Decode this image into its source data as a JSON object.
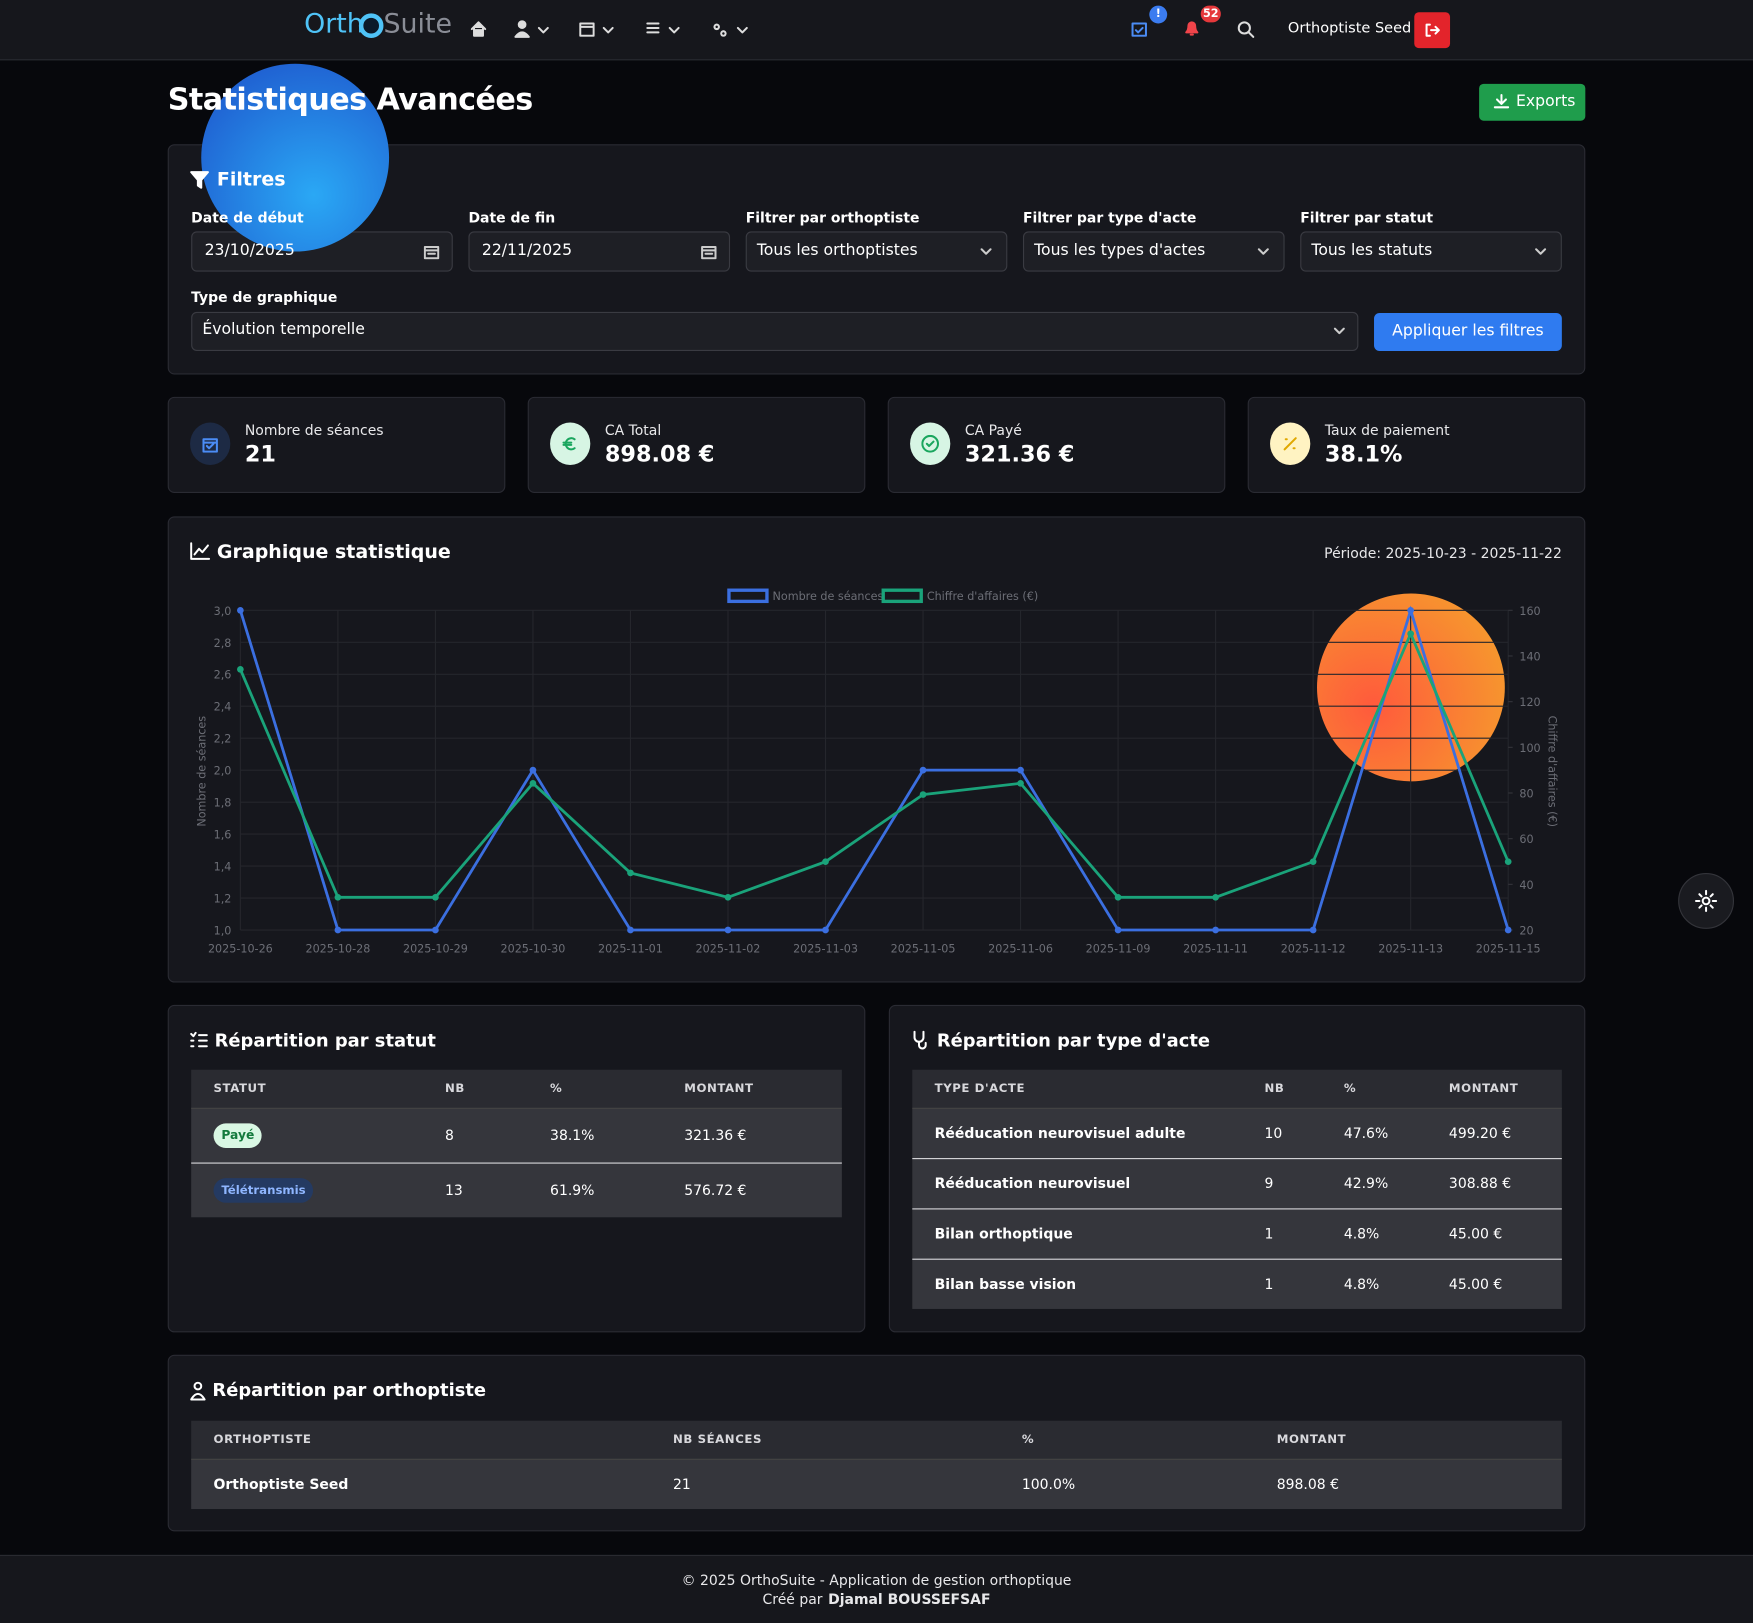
{
  "nav": {
    "brand_left": "Orth",
    "brand_right": "Suite",
    "badge_calendar": "!",
    "badge_bell": "52",
    "user": "Orthoptiste Seed"
  },
  "page": {
    "title": "Statistiques Avancées",
    "export": "Exports"
  },
  "filters": {
    "title": "Filtres",
    "fields": [
      {
        "label": "Date de début",
        "value": "23/10/2025"
      },
      {
        "label": "Date de fin",
        "value": "22/11/2025"
      },
      {
        "label": "Filtrer par orthoptiste",
        "value": "Tous les orthoptistes"
      },
      {
        "label": "Filtrer par type d'acte",
        "value": "Tous les types d'actes"
      },
      {
        "label": "Filtrer par statut",
        "value": "Tous les statuts"
      }
    ],
    "chart_type": {
      "label": "Type de graphique",
      "value": "Évolution temporelle"
    },
    "apply": "Appliquer les filtres"
  },
  "cards": [
    {
      "label": "Nombre de séances",
      "value": "21"
    },
    {
      "label": "CA Total",
      "value": "898.08 €"
    },
    {
      "label": "CA Payé",
      "value": "321.36 €"
    },
    {
      "label": "Taux de paiement",
      "value": "38.1%"
    }
  ],
  "chart_data": {
    "type": "line",
    "title": "Graphique statistique",
    "period": "Période: 2025-10-23 - 2025-11-22",
    "categories": [
      "2025-10-26",
      "2025-10-28",
      "2025-10-29",
      "2025-10-30",
      "2025-11-01",
      "2025-11-02",
      "2025-11-03",
      "2025-11-05",
      "2025-11-06",
      "2025-11-09",
      "2025-11-11",
      "2025-11-12",
      "2025-11-13",
      "2025-11-15"
    ],
    "series": [
      {
        "name": "Nombre de séances",
        "color": "#3b6fe0",
        "axis": "y",
        "values": [
          3,
          1,
          1,
          2,
          1,
          1,
          1,
          2,
          2,
          1,
          1,
          1,
          3,
          1
        ]
      },
      {
        "name": "Chiffre d'affaires (€)",
        "color": "#1aa37a",
        "axis": "y2",
        "values": [
          134.16,
          34.32,
          34.32,
          84.24,
          45,
          34.32,
          49.92,
          79.32,
          84.24,
          34.32,
          34.32,
          49.92,
          149.76,
          49.92
        ]
      }
    ],
    "ylabel": "Nombre de séances",
    "y2label": "Chiffre d'affaires (€)",
    "ylim": [
      1,
      3
    ],
    "yticks": [
      {
        "value": 1,
        "label": "1,0"
      },
      {
        "value": 1.2,
        "label": "1,2"
      },
      {
        "value": 1.4,
        "label": "1,4"
      },
      {
        "value": 1.6,
        "label": "1,6"
      },
      {
        "value": 1.8,
        "label": "1,8"
      },
      {
        "value": 2,
        "label": "2,0"
      },
      {
        "value": 2.2,
        "label": "2,2"
      },
      {
        "value": 2.4,
        "label": "2,4"
      },
      {
        "value": 2.6,
        "label": "2,6"
      },
      {
        "value": 2.8,
        "label": "2,8"
      },
      {
        "value": 3,
        "label": "3,0"
      }
    ],
    "y2lim": [
      20,
      160
    ],
    "y2ticks": [
      20,
      40,
      60,
      80,
      100,
      120,
      140,
      160
    ],
    "grid": true,
    "legend": "top"
  },
  "status_table": {
    "title": "Répartition par statut",
    "headers": [
      "STATUT",
      "NB",
      "%",
      "MONTANT"
    ],
    "rows": [
      [
        "Payé",
        "8",
        "38.1%",
        "321.36 €"
      ],
      [
        "Télétransmis",
        "13",
        "61.9%",
        "576.72 €"
      ]
    ]
  },
  "type_table": {
    "title": "Répartition par type d'acte",
    "headers": [
      "TYPE D'ACTE",
      "NB",
      "%",
      "MONTANT"
    ],
    "rows": [
      [
        "Rééducation neurovisuel adulte",
        "10",
        "47.6%",
        "499.20 €"
      ],
      [
        "Rééducation neurovisuel",
        "9",
        "42.9%",
        "308.88 €"
      ],
      [
        "Bilan orthoptique",
        "1",
        "4.8%",
        "45.00 €"
      ],
      [
        "Bilan basse vision",
        "1",
        "4.8%",
        "45.00 €"
      ]
    ]
  },
  "ortho_table": {
    "title": "Répartition par orthoptiste",
    "headers": [
      "ORTHOPTISTE",
      "NB SÉANCES",
      "%",
      "MONTANT"
    ],
    "rows": [
      [
        "Orthoptiste Seed",
        "21",
        "100.0%",
        "898.08 €"
      ]
    ]
  },
  "footer": {
    "line1": "© 2025 OrthoSuite - Application de gestion orthoptique",
    "line2_prefix": "Créé par",
    "line2_name": "Djamal BOUSSEFSAF"
  }
}
